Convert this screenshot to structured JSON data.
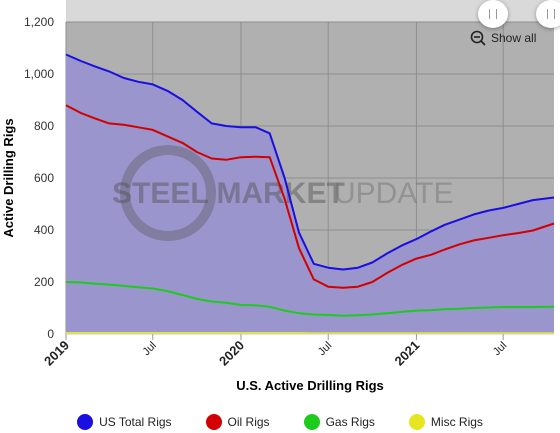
{
  "chart_data": {
    "type": "area",
    "title": "",
    "xlabel": "U.S. Active Drilling Rigs",
    "ylabel": "Active Drilling Rigs",
    "ylim": [
      0,
      1200
    ],
    "xlim": [
      "2019-01-01",
      "2021-10-15"
    ],
    "y_ticks": [
      "0",
      "200",
      "400",
      "600",
      "800",
      "1,000",
      "1,200"
    ],
    "x_ticks": [
      {
        "label": "2019",
        "date": "2019-01-01",
        "bold": true
      },
      {
        "label": "Jul",
        "date": "2019-07-01",
        "bold": false
      },
      {
        "label": "2020",
        "date": "2020-01-01",
        "bold": true
      },
      {
        "label": "Jul",
        "date": "2020-07-01",
        "bold": false
      },
      {
        "label": "2021",
        "date": "2021-01-01",
        "bold": true
      },
      {
        "label": "Jul",
        "date": "2021-07-01",
        "bold": false
      }
    ],
    "grid": true,
    "legend_position": "bottom",
    "x_dates": [
      "2019-01-01",
      "2019-02-01",
      "2019-03-01",
      "2019-04-01",
      "2019-05-01",
      "2019-06-01",
      "2019-07-01",
      "2019-08-01",
      "2019-09-01",
      "2019-10-01",
      "2019-11-01",
      "2019-12-01",
      "2020-01-01",
      "2020-02-01",
      "2020-03-01",
      "2020-04-01",
      "2020-05-01",
      "2020-06-01",
      "2020-07-01",
      "2020-08-01",
      "2020-09-01",
      "2020-10-01",
      "2020-11-01",
      "2020-12-01",
      "2021-01-01",
      "2021-02-01",
      "2021-03-01",
      "2021-04-01",
      "2021-05-01",
      "2021-06-01",
      "2021-07-01",
      "2021-08-01",
      "2021-09-01",
      "2021-10-15"
    ],
    "series": [
      {
        "name": "US Total Rigs",
        "color": "#1a0fe0",
        "fill": "#9a95cc",
        "values": [
          1075,
          1050,
          1030,
          1010,
          985,
          970,
          960,
          935,
          900,
          855,
          810,
          800,
          795,
          795,
          772,
          600,
          390,
          270,
          255,
          248,
          255,
          275,
          310,
          340,
          365,
          395,
          420,
          440,
          460,
          475,
          485,
          500,
          515,
          525
        ]
      },
      {
        "name": "Oil Rigs",
        "color": "#d20000",
        "values": [
          880,
          850,
          830,
          810,
          805,
          795,
          785,
          760,
          735,
          700,
          675,
          670,
          680,
          682,
          680,
          520,
          330,
          210,
          182,
          178,
          182,
          200,
          235,
          265,
          290,
          305,
          325,
          345,
          360,
          370,
          380,
          388,
          398,
          425
        ]
      },
      {
        "name": "Gas Rigs",
        "color": "#1ccb1c",
        "values": [
          200,
          198,
          194,
          190,
          185,
          180,
          175,
          165,
          150,
          135,
          125,
          120,
          112,
          110,
          105,
          90,
          80,
          75,
          73,
          70,
          72,
          75,
          80,
          85,
          90,
          92,
          95,
          97,
          100,
          102,
          104,
          104,
          104,
          105
        ]
      },
      {
        "name": "Misc Rigs",
        "color": "#e6e620",
        "values": [
          4,
          4,
          4,
          4,
          4,
          4,
          4,
          4,
          4,
          4,
          4,
          4,
          4,
          4,
          4,
          4,
          4,
          3,
          3,
          3,
          3,
          3,
          3,
          3,
          3,
          3,
          3,
          3,
          3,
          3,
          3,
          3,
          3,
          3
        ]
      }
    ]
  },
  "watermark": {
    "text_bold": "STEEL MARKET",
    "text_light": "UPDATE"
  },
  "controls": {
    "show_all_label": "Show all"
  },
  "colors": {
    "plot_background": "#b0b0b0",
    "top_band": "#d9d9d9",
    "grid": "#8e8e8e"
  }
}
